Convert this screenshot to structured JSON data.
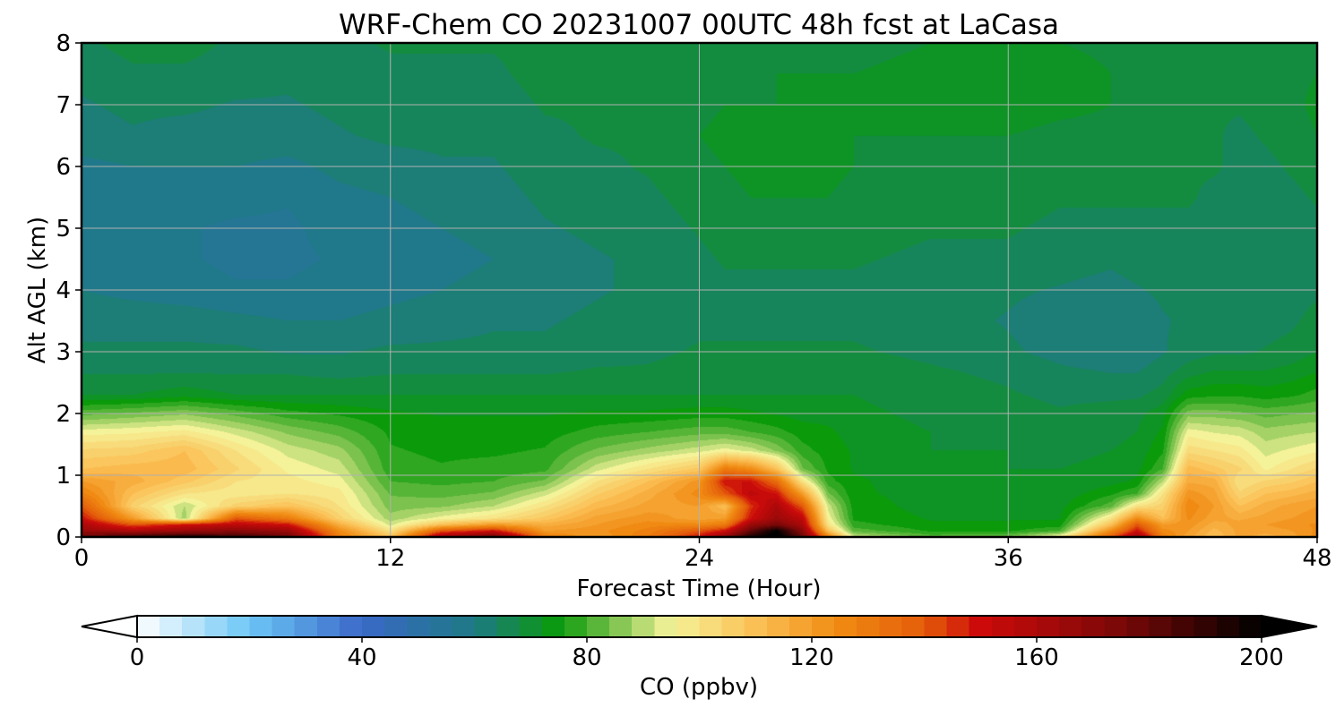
{
  "chart_data": {
    "type": "heatmap",
    "title": "WRF-Chem CO  20231007 00UTC 48h fcst at LaCasa",
    "xlabel": "Forecast Time (Hour)",
    "ylabel": "Alt AGL (km)",
    "xlim": [
      0,
      48
    ],
    "ylim": [
      0,
      8
    ],
    "xticks": [
      0,
      12,
      24,
      36,
      48
    ],
    "yticks": [
      0,
      1,
      2,
      3,
      4,
      5,
      6,
      7,
      8
    ],
    "grid": true,
    "colorbar": {
      "label": "CO  (ppbv)",
      "orientation": "horizontal",
      "extend": "both",
      "range": [
        0,
        200
      ],
      "ticks": [
        0,
        40,
        80,
        120,
        160,
        200
      ],
      "colors": [
        [
          0,
          "#ffffff"
        ],
        [
          20,
          "#6cc6f5"
        ],
        [
          40,
          "#3a68c8"
        ],
        [
          60,
          "#1e7a84"
        ],
        [
          75,
          "#0a9a0a"
        ],
        [
          85,
          "#7cc24e"
        ],
        [
          95,
          "#f5f39a"
        ],
        [
          110,
          "#fbc055"
        ],
        [
          125,
          "#f08a12"
        ],
        [
          140,
          "#e45c0a"
        ],
        [
          150,
          "#cc0a0a"
        ],
        [
          175,
          "#7a0808"
        ],
        [
          200,
          "#000000"
        ]
      ]
    },
    "x_hours": [
      0,
      1,
      2,
      3,
      4,
      5,
      6,
      7,
      8,
      9,
      10,
      11,
      12,
      13,
      14,
      15,
      16,
      17,
      18,
      19,
      20,
      21,
      22,
      23,
      24,
      25,
      26,
      27,
      28,
      29,
      30,
      31,
      32,
      33,
      34,
      35,
      36,
      37,
      38,
      39,
      40,
      41,
      42,
      43,
      44,
      45,
      46,
      47,
      48
    ],
    "y_km": [
      0,
      0.1,
      0.2,
      0.3,
      0.5,
      0.7,
      0.9,
      1.1,
      1.4,
      1.7,
      2.0,
      2.3,
      2.7,
      3.0,
      3.5,
      4.0,
      4.5,
      5.0,
      5.5,
      6.0,
      6.5,
      7.0,
      7.5,
      8.0
    ],
    "series": [
      {
        "x": 0,
        "values": [
          180,
          165,
          160,
          150,
          140,
          128,
          120,
          110,
          104,
          95,
          82,
          70,
          66,
          64,
          62,
          60,
          58,
          57,
          58,
          59,
          62,
          63,
          64,
          66
        ]
      },
      {
        "x": 2,
        "values": [
          190,
          160,
          140,
          120,
          105,
          110,
          115,
          112,
          105,
          96,
          84,
          70,
          66,
          64,
          62,
          59,
          58,
          58,
          59,
          60,
          63,
          64,
          66,
          68
        ]
      },
      {
        "x": 4,
        "values": [
          195,
          165,
          150,
          88,
          90,
          100,
          108,
          112,
          110,
          98,
          86,
          72,
          66,
          64,
          62,
          58,
          57,
          57,
          58,
          60,
          62,
          64,
          66,
          68
        ]
      },
      {
        "x": 6,
        "values": [
          190,
          170,
          155,
          140,
          105,
          98,
          100,
          104,
          100,
          92,
          82,
          70,
          66,
          64,
          61,
          57,
          56,
          56,
          58,
          60,
          62,
          63,
          65,
          66
        ]
      },
      {
        "x": 8,
        "values": [
          180,
          165,
          150,
          130,
          110,
          100,
          98,
          96,
          92,
          86,
          78,
          70,
          66,
          63,
          60,
          57,
          56,
          56,
          57,
          59,
          62,
          63,
          64,
          65
        ]
      },
      {
        "x": 10,
        "values": [
          130,
          125,
          115,
          105,
          100,
          98,
          95,
          92,
          88,
          82,
          76,
          70,
          65,
          63,
          60,
          58,
          57,
          58,
          59,
          61,
          63,
          64,
          65,
          66
        ]
      },
      {
        "x": 12,
        "values": [
          110,
          100,
          92,
          88,
          85,
          83,
          80,
          78,
          77,
          76,
          74,
          70,
          66,
          64,
          61,
          59,
          58,
          59,
          60,
          62,
          64,
          65,
          66,
          67
        ]
      },
      {
        "x": 14,
        "values": [
          165,
          140,
          110,
          95,
          86,
          82,
          79,
          77,
          76,
          75,
          73,
          70,
          66,
          64,
          62,
          60,
          59,
          60,
          61,
          63,
          64,
          65,
          66,
          67
        ]
      },
      {
        "x": 16,
        "values": [
          180,
          150,
          120,
          100,
          90,
          84,
          80,
          78,
          76,
          75,
          73,
          70,
          66,
          64,
          63,
          61,
          60,
          61,
          62,
          63,
          64,
          65,
          66,
          67
        ]
      },
      {
        "x": 18,
        "values": [
          130,
          120,
          115,
          108,
          100,
          92,
          84,
          79,
          77,
          75,
          73,
          70,
          66,
          64,
          63,
          62,
          62,
          63,
          64,
          65,
          66,
          67,
          68,
          68
        ]
      },
      {
        "x": 20,
        "values": [
          120,
          122,
          120,
          118,
          112,
          106,
          100,
          92,
          84,
          78,
          74,
          70,
          67,
          65,
          64,
          63,
          63,
          64,
          65,
          66,
          67,
          67,
          68,
          68
        ]
      },
      {
        "x": 22,
        "values": [
          130,
          128,
          125,
          122,
          118,
          115,
          110,
          100,
          88,
          80,
          74,
          70,
          67,
          66,
          65,
          64,
          64,
          65,
          66,
          67,
          67,
          68,
          68,
          68
        ]
      },
      {
        "x": 24,
        "values": [
          150,
          140,
          125,
          118,
          120,
          125,
          122,
          108,
          92,
          82,
          75,
          70,
          68,
          67,
          66,
          65,
          66,
          67,
          68,
          69,
          70,
          69,
          69,
          68
        ]
      },
      {
        "x": 25,
        "values": [
          170,
          150,
          130,
          120,
          110,
          140,
          150,
          130,
          95,
          82,
          75,
          70,
          68,
          67,
          66,
          66,
          67,
          68,
          69,
          70,
          71,
          70,
          69,
          69
        ]
      },
      {
        "x": 26,
        "values": [
          195,
          180,
          165,
          150,
          145,
          155,
          150,
          125,
          92,
          80,
          74,
          70,
          68,
          67,
          66,
          66,
          67,
          68,
          70,
          71,
          71,
          70,
          69,
          69
        ]
      },
      {
        "x": 27,
        "values": [
          205,
          200,
          175,
          165,
          160,
          150,
          135,
          110,
          86,
          78,
          73,
          70,
          68,
          67,
          66,
          66,
          67,
          69,
          70,
          71,
          71,
          70,
          70,
          69
        ]
      },
      {
        "x": 28,
        "values": [
          180,
          170,
          160,
          155,
          140,
          120,
          100,
          84,
          78,
          75,
          72,
          70,
          68,
          67,
          66,
          66,
          67,
          69,
          70,
          71,
          71,
          70,
          70,
          69
        ]
      },
      {
        "x": 29,
        "values": [
          130,
          110,
          100,
          96,
          92,
          84,
          78,
          76,
          75,
          74,
          72,
          70,
          68,
          67,
          66,
          66,
          67,
          69,
          70,
          71,
          71,
          70,
          70,
          69
        ]
      },
      {
        "x": 30,
        "values": [
          92,
          82,
          78,
          76,
          75,
          74,
          74,
          73,
          73,
          72,
          71,
          70,
          68,
          67,
          66,
          66,
          67,
          68,
          69,
          70,
          70,
          70,
          70,
          69
        ]
      },
      {
        "x": 33,
        "values": [
          82,
          76,
          74,
          73,
          72,
          72,
          71,
          71,
          70,
          70,
          69,
          68,
          67,
          66,
          65,
          65,
          66,
          67,
          68,
          69,
          70,
          71,
          71,
          70
        ]
      },
      {
        "x": 36,
        "values": [
          84,
          76,
          74,
          73,
          72,
          71,
          71,
          70,
          70,
          69,
          68,
          67,
          66,
          64,
          63,
          64,
          66,
          67,
          68,
          69,
          70,
          72,
          72,
          70
        ]
      },
      {
        "x": 38,
        "values": [
          98,
          80,
          75,
          73,
          72,
          71,
          70,
          70,
          69,
          68,
          67,
          66,
          64,
          62,
          61,
          63,
          65,
          66,
          67,
          68,
          69,
          71,
          72,
          70
        ]
      },
      {
        "x": 40,
        "values": [
          140,
          125,
          110,
          100,
          82,
          76,
          72,
          71,
          70,
          69,
          68,
          66,
          63,
          60,
          60,
          62,
          64,
          66,
          67,
          68,
          69,
          70,
          70,
          69
        ]
      },
      {
        "x": 41,
        "values": [
          165,
          150,
          140,
          125,
          100,
          80,
          74,
          72,
          71,
          70,
          69,
          66,
          63,
          61,
          61,
          63,
          65,
          66,
          67,
          68,
          69,
          69,
          69,
          68
        ]
      },
      {
        "x": 42,
        "values": [
          130,
          125,
          120,
          110,
          105,
          100,
          90,
          80,
          76,
          74,
          72,
          68,
          65,
          63,
          63,
          64,
          65,
          66,
          67,
          68,
          68,
          68,
          68,
          67
        ]
      },
      {
        "x": 43,
        "values": [
          118,
          120,
          122,
          124,
          126,
          122,
          116,
          112,
          102,
          95,
          85,
          75,
          68,
          65,
          64,
          64,
          65,
          66,
          67,
          67,
          67,
          68,
          68,
          67
        ]
      },
      {
        "x": 44,
        "values": [
          110,
          112,
          115,
          118,
          120,
          118,
          115,
          108,
          100,
          93,
          85,
          76,
          70,
          66,
          64,
          64,
          65,
          66,
          66,
          67,
          67,
          67,
          67,
          67
        ]
      },
      {
        "x": 45,
        "values": [
          118,
          118,
          118,
          116,
          110,
          104,
          100,
          104,
          98,
          92,
          84,
          76,
          70,
          66,
          64,
          64,
          64,
          65,
          66,
          66,
          66,
          67,
          67,
          67
        ]
      },
      {
        "x": 46,
        "values": [
          115,
          118,
          120,
          118,
          115,
          110,
          104,
          96,
          92,
          88,
          82,
          75,
          70,
          67,
          65,
          64,
          64,
          65,
          66,
          66,
          67,
          68,
          68,
          67
        ]
      },
      {
        "x": 47,
        "values": [
          118,
          120,
          122,
          120,
          118,
          112,
          106,
          100,
          94,
          89,
          83,
          76,
          71,
          68,
          66,
          65,
          65,
          65,
          66,
          67,
          68,
          69,
          69,
          68
        ]
      },
      {
        "x": 48,
        "values": [
          125,
          124,
          124,
          122,
          120,
          115,
          110,
          104,
          96,
          90,
          84,
          78,
          73,
          70,
          68,
          66,
          66,
          66,
          67,
          68,
          70,
          71,
          70,
          69
        ]
      }
    ]
  }
}
